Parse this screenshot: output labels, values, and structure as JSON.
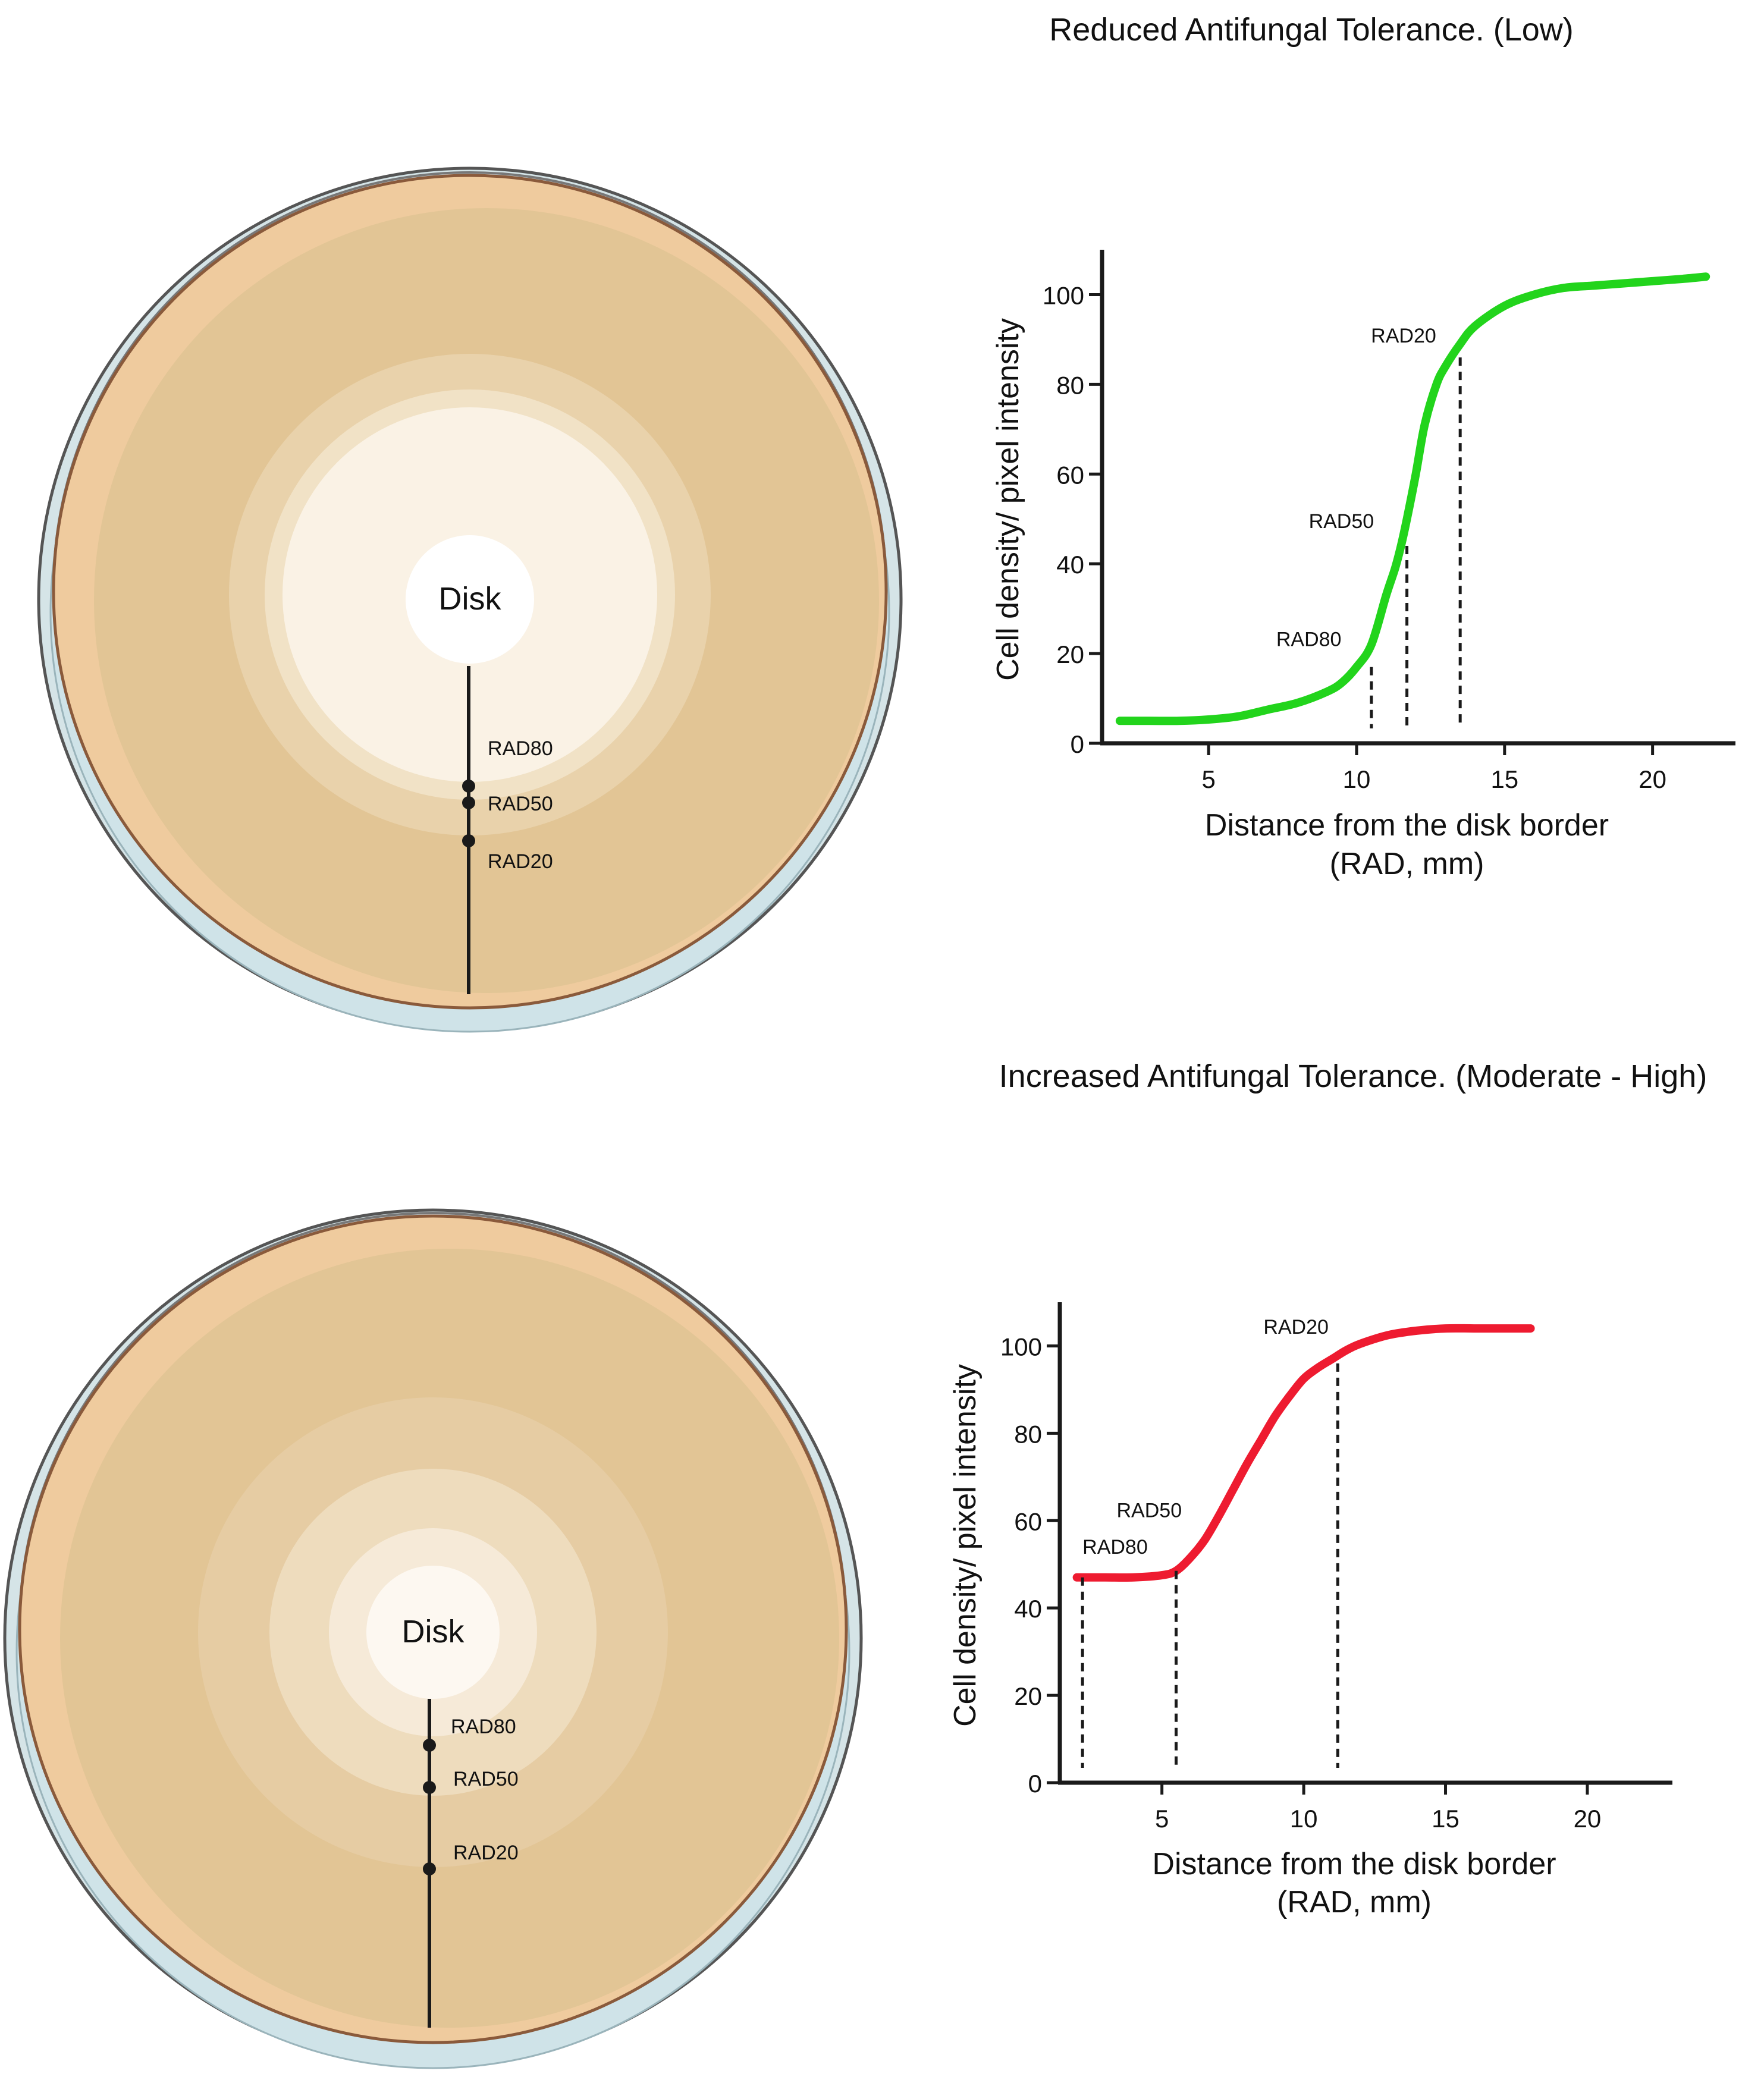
{
  "panels": [
    {
      "id": "low",
      "title": "Reduced Antifungal Tolerance. (Low)",
      "disk_label": "Disk",
      "plate_markers": [
        "RAD80",
        "RAD50",
        "RAD20"
      ],
      "colors": {
        "curve": "#22d41c"
      },
      "chart_data": {
        "type": "line",
        "title": "Reduced Antifungal Tolerance. (Low)",
        "xlabel": "Distance from the disk border\n(RAD, mm)",
        "xlabel_lines": [
          "Distance from the disk border",
          "(RAD, mm)"
        ],
        "ylabel": "Cell density/ pixel intensity",
        "xlim": [
          1.4,
          22.8
        ],
        "ylim": [
          0,
          110
        ],
        "xticks": [
          5,
          10,
          15,
          20
        ],
        "yticks": [
          0,
          20,
          40,
          60,
          80,
          100
        ],
        "series": [
          {
            "x": [
              2,
              3,
              4,
              5,
              6,
              7,
              8,
              9,
              9.5,
              10,
              10.5,
              11,
              11.3,
              11.5,
              11.7,
              12,
              12.3,
              12.7,
              13,
              13.5,
              14,
              15,
              16,
              17,
              18,
              19,
              20,
              21,
              21.8
            ],
            "y": [
              5,
              5,
              5,
              5.3,
              6,
              7.5,
              9,
              11.5,
              13.5,
              17,
              22,
              33,
              39,
              44,
              50,
              60,
              71,
              80,
              84,
              89,
              93,
              97.5,
              100,
              101.5,
              102,
              102.5,
              103,
              103.5,
              104
            ]
          }
        ],
        "markers": [
          {
            "label": "RAD80",
            "x": 10.5,
            "y": 17
          },
          {
            "label": "RAD50",
            "x": 11.7,
            "y": 44
          },
          {
            "label": "RAD20",
            "x": 13.5,
            "y": 86
          }
        ],
        "grid": false,
        "legend": "none"
      }
    },
    {
      "id": "high",
      "title": "Increased Antifungal Tolerance. (Moderate - High)",
      "disk_label": "Disk",
      "plate_markers": [
        "RAD80",
        "RAD50",
        "RAD20"
      ],
      "colors": {
        "curve": "#ee1b30"
      },
      "chart_data": {
        "type": "line",
        "title": "Increased Antifungal Tolerance. (Moderate - High)",
        "xlabel": "Distance from the disk border\n(RAD, mm)",
        "xlabel_lines": [
          "Distance from the disk border",
          "(RAD, mm)"
        ],
        "ylabel": "Cell density/ pixel intensity",
        "xlim": [
          1.4,
          23
        ],
        "ylim": [
          0,
          110
        ],
        "xticks": [
          5,
          10,
          15,
          20
        ],
        "yticks": [
          0,
          20,
          40,
          60,
          80,
          100
        ],
        "series": [
          {
            "x": [
              2,
              3,
              4,
              5,
              5.5,
              6,
              6.5,
              7,
              7.5,
              8,
              8.5,
              9,
              9.5,
              10,
              10.5,
              11,
              11.5,
              12,
              13,
              14,
              15,
              16,
              17,
              18
            ],
            "y": [
              47,
              47,
              47,
              47.5,
              48.5,
              51.5,
              55.5,
              61,
              67,
              73,
              78.5,
              84,
              88.5,
              92.5,
              95,
              97,
              99,
              100.5,
              102.5,
              103.5,
              104,
              104,
              104,
              104
            ]
          }
        ],
        "markers": [
          {
            "label": "RAD80",
            "x": 2.2,
            "y": 47
          },
          {
            "label": "RAD50",
            "x": 5.5,
            "y": 48.5
          },
          {
            "label": "RAD20",
            "x": 11.2,
            "y": 96
          }
        ],
        "grid": false,
        "legend": "none"
      }
    }
  ]
}
